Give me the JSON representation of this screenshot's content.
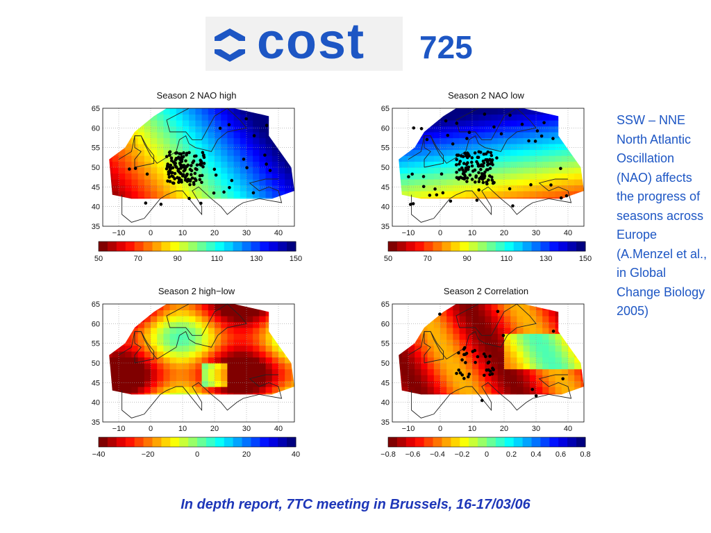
{
  "header": {
    "logo_word": "cost",
    "action_number": "725"
  },
  "panels": [
    {
      "title": "Season 2 NAO high",
      "colorbar_ticks": [
        "50",
        "70",
        "90",
        "110",
        "130",
        "150"
      ],
      "pattern": "nao-high"
    },
    {
      "title": "Season 2 NAO low",
      "colorbar_ticks": [
        "50",
        "70",
        "90",
        "110",
        "130",
        "150"
      ],
      "pattern": "nao-low"
    },
    {
      "title": "Season 2 high−low",
      "colorbar_ticks": [
        "−40",
        "−20",
        "0",
        "20",
        "40"
      ],
      "pattern": "diff"
    },
    {
      "title": "Season 2 Correlation",
      "colorbar_ticks": [
        "−0.8",
        "−0.6",
        "−0.4",
        "−0.2",
        "0",
        "0.2",
        "0.4",
        "0.6",
        "0.8"
      ],
      "pattern": "corr"
    }
  ],
  "map_axes": {
    "x_ticks": [
      "−10",
      "0",
      "10",
      "20",
      "30",
      "40"
    ],
    "y_ticks": [
      "65",
      "60",
      "55",
      "50",
      "45",
      "40",
      "35"
    ]
  },
  "side_note": "SSW – NNE North Atlantic Oscillation (NAO) affects the progress of seasons across Europe (A.Menzel et al., in Global Change Biology 2005)",
  "footer": "In depth report, 7TC meeting in Brussels, 16-17/03/06",
  "colors": {
    "brand_blue": "#1d56c4",
    "footer_blue": "#1d36b8"
  }
}
